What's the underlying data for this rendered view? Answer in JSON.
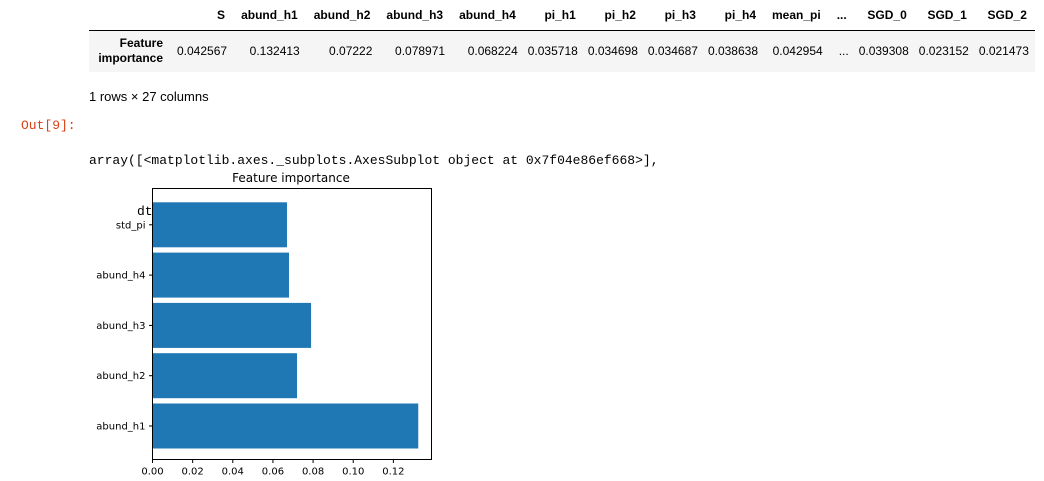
{
  "dataframe": {
    "columns": [
      "S",
      "abund_h1",
      "abund_h2",
      "abund_h3",
      "abund_h4",
      "pi_h1",
      "pi_h2",
      "pi_h3",
      "pi_h4",
      "mean_pi",
      "...",
      "SGD_0",
      "SGD_1",
      "SGD_2"
    ],
    "index_label_line1": "Feature",
    "index_label_line2": "importance",
    "row": [
      "0.042567",
      "0.132413",
      "0.07222",
      "0.078971",
      "0.068224",
      "0.035718",
      "0.034698",
      "0.034687",
      "0.038638",
      "0.042954",
      "...",
      "0.039308",
      "0.023152",
      "0.021473"
    ]
  },
  "shape_text": "1 rows × 27 columns",
  "output": {
    "prompt": "Out[9]:",
    "line1": "array([<matplotlib.axes._subplots.AxesSubplot object at 0x7f04e86ef668>],",
    "line2": "dtype=object)"
  },
  "colors": {
    "bar": "#1f77b4",
    "prompt": "#d84315"
  },
  "chart_data": {
    "type": "bar",
    "orientation": "horizontal",
    "title": "Feature importance",
    "categories": [
      "abund_h1",
      "abund_h2",
      "abund_h3",
      "abund_h4",
      "std_pi"
    ],
    "values": [
      0.1324,
      0.072,
      0.079,
      0.068,
      0.067
    ],
    "xlim": [
      0.0,
      0.139
    ],
    "xticks": [
      "0.00",
      "0.02",
      "0.04",
      "0.06",
      "0.08",
      "0.10",
      "0.12"
    ],
    "xlabel": "",
    "ylabel": "",
    "grid": false,
    "legend": "none"
  }
}
